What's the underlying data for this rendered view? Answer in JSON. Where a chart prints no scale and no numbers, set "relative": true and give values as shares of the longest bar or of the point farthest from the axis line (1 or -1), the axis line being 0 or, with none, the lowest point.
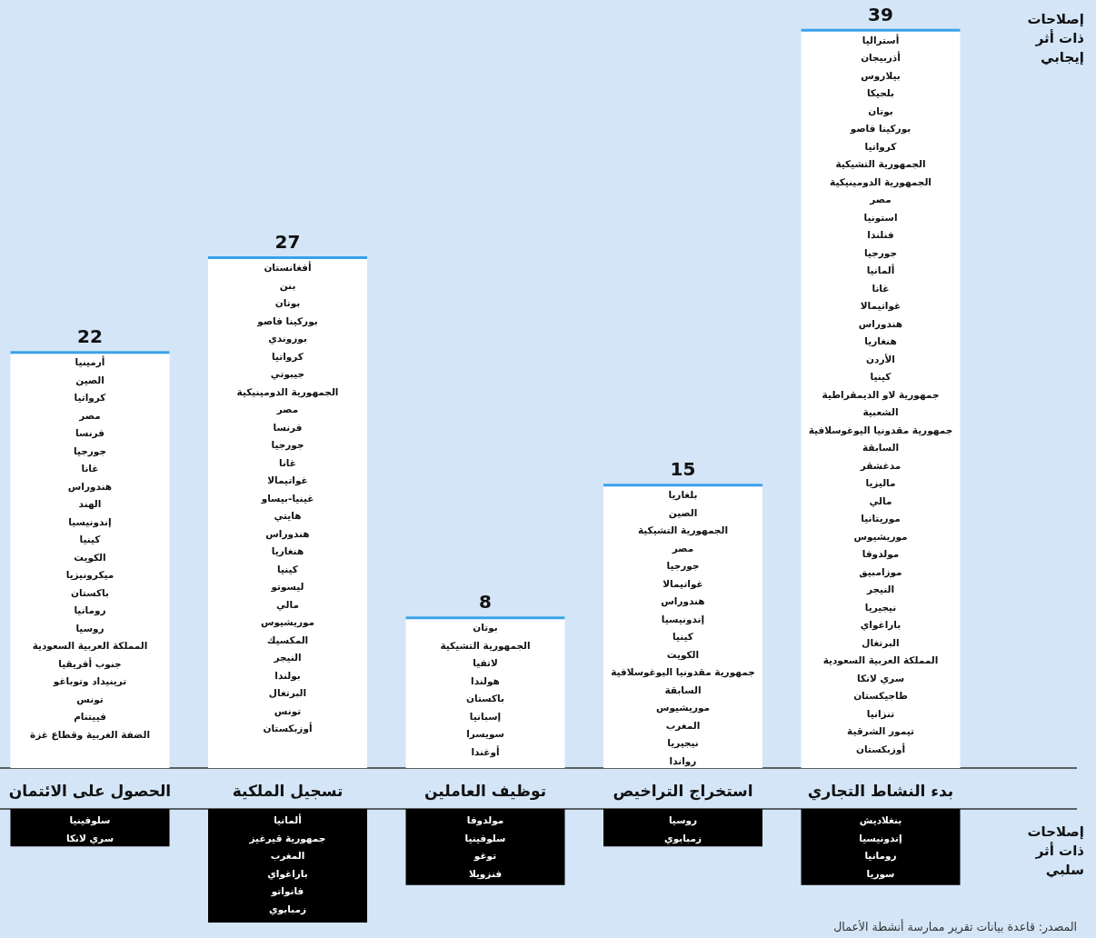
{
  "chart_data": [
    {
      "type": "bar",
      "categories": [
        "الحصول على الائتمان",
        "تسجيل الملكية",
        "توظيف العاملين",
        "استخراج التراخيص",
        "بدء النشاط التجاري"
      ],
      "series": [
        {
          "name": "إصلاحات ذات أثر إيجابي",
          "color": "#ffffff",
          "values": [
            22,
            27,
            8,
            15,
            39
          ],
          "value_labels": [
            "22",
            "27",
            "8",
            "15",
            "39"
          ]
        }
      ],
      "annotations": [
        "أرمينيا",
        "الصين",
        "كرواتيا",
        "مصر",
        "فرنسا",
        "جورجيا",
        "غانا",
        "هندوراس",
        "الهند",
        "إندونيسيا",
        "كينيا",
        "الكويت",
        "ميكرونيزيا",
        "باكستان",
        "رومانيا",
        "روسيا",
        "المملكة العربية السعودية",
        "جنوب أفريقيا",
        "ترينيداد وتوباغو",
        "تونس",
        "فييتنام",
        "الضفة الغربية وقطاع غزة",
        "أفغانستان",
        "بنن",
        "بوتان",
        "بوركينا فاصو",
        "بوروندي",
        "كرواتيا",
        "جيبوتي",
        "الجمهورية الدومينيكية",
        "مصر",
        "فرنسا",
        "جورجيا",
        "غانا",
        "غواتيمالا",
        "غينيا-بيساو",
        "هايتي",
        "هندوراس",
        "هنغاريا",
        "كينيا",
        "ليسوتو",
        "مالي",
        "موريشيوس",
        "المكسيك",
        "النيجر",
        "بولندا",
        "البرتغال",
        "تونس",
        "أوزبكستان",
        "بوتان",
        "الجمهورية التشيكية",
        "لاتفيا",
        "هولندا",
        "باكستان",
        "إسبانيا",
        "سويسرا",
        "أوغندا",
        "بلغاريا",
        "الصين",
        "الجمهورية التشيكية",
        "مصر",
        "جورجيا",
        "غواتيمالا",
        "هندوراس",
        "إندونيسيا",
        "كينيا",
        "الكويت",
        "جمهورية مقدونيا اليوغوسلافية السابقة",
        "موريشيوس",
        "المغرب",
        "نيجيريا",
        "رواندا",
        "أستراليا",
        "أذربيجان",
        "بيلاروس",
        "بلجيكا",
        "بوتان",
        "بوركينا فاصو",
        "كرواتيا",
        "الجمهورية التشيكية",
        "الجمهورية الدومينيكية",
        "مصر",
        "استونيا",
        "فنلندا",
        "جورجيا",
        "ألمانيا",
        "غانا",
        "غواتيمالا",
        "هندوراس",
        "هنغاريا",
        "الأردن",
        "كينيا",
        "جمهورية لاو الديمقراطية الشعبية",
        "جمهورية مقدونيا اليوغوسلافية السابقة",
        "مدغشقر",
        "ماليزيا",
        "مالي",
        "موريتانيا",
        "موريشيوس",
        "مولدوفا",
        "موزامبيق",
        "النيجر",
        "نيجيريا",
        "باراغواي",
        "البرتغال",
        "المملكة العربية السعودية",
        "سري لانكا",
        "طاجيكستان",
        "تنزانيا",
        "تيمور الشرقية",
        "أوزبكستان"
      ]
    },
    {
      "type": "bar",
      "relative": true,
      "series": [
        {
          "name": "إصلاحات ذات أثر سلبي",
          "color": "#000000",
          "values": [
            -0.33,
            -1,
            -0.67,
            -0.33,
            -0.67
          ]
        }
      ],
      "annotations": [
        "سلوفينيا",
        "سري لانكا",
        "ألمانيا",
        "جمهورية قيرغيز",
        "المغرب",
        "باراغواي",
        "فانواتو",
        "زمبابوي",
        "مولدوفا",
        "سلوفينيا",
        "توغو",
        "فنزويلا",
        "روسيا",
        "زمبابوي",
        "بنغلاديش",
        "إندونيسيا",
        "رومانيا",
        "سوريا",
        "المصدر: قاعدة بيانات تقرير ممارسة أنشطة الأعمال"
      ]
    }
  ]
}
